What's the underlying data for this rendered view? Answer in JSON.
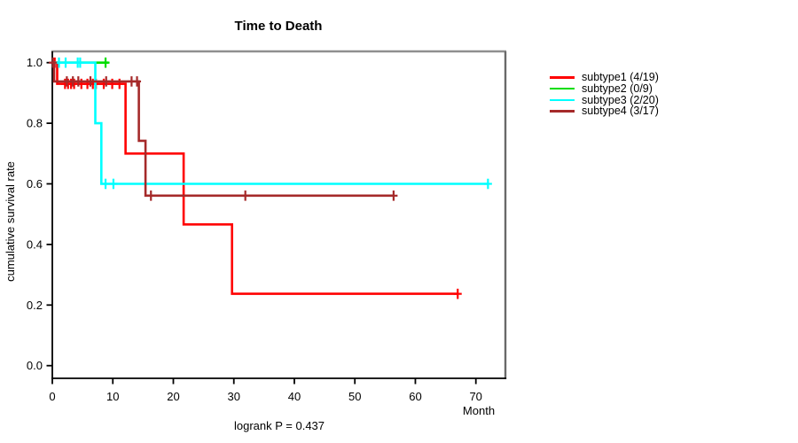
{
  "chart_data": {
    "type": "line",
    "subtype": "kaplan-meier-step",
    "title": "Time to Death",
    "xlabel": "Month",
    "ylabel": "cumulative survival rate",
    "annotation": "logrank P = 0.437",
    "xlim": [
      0,
      74.9
    ],
    "ylim": [
      0,
      1.04
    ],
    "x_ticks": [
      "0",
      "10",
      "20",
      "30",
      "40",
      "50",
      "60",
      "70"
    ],
    "y_ticks": [
      "0.0",
      "0.2",
      "0.4",
      "0.6",
      "0.8",
      "1.0"
    ],
    "grid": false,
    "legend_position": "right-outside",
    "axis_color": "#000000",
    "box_top_color": "#8f8f8f",
    "box_right_color": "#6a6a6a",
    "series": [
      {
        "name": "subtype1 (4/19)",
        "color": "#FF0000",
        "steps": [
          [
            0,
            1.0
          ],
          [
            0.8,
            1.0
          ],
          [
            0.8,
            0.93
          ],
          [
            12.1,
            0.93
          ],
          [
            12.1,
            0.7
          ],
          [
            21.7,
            0.7
          ],
          [
            21.7,
            0.466
          ],
          [
            29.7,
            0.466
          ],
          [
            29.7,
            0.237
          ],
          [
            67,
            0.237
          ]
        ],
        "censors": [
          [
            0.4,
            1.0
          ],
          [
            2.1,
            0.93
          ],
          [
            2.6,
            0.93
          ],
          [
            3.1,
            0.93
          ],
          [
            3.6,
            0.93
          ],
          [
            4.8,
            0.93
          ],
          [
            5.8,
            0.93
          ],
          [
            6.7,
            0.93
          ],
          [
            7.2,
            0.93
          ],
          [
            8.5,
            0.93
          ],
          [
            9.9,
            0.93
          ],
          [
            11.1,
            0.93
          ],
          [
            67,
            0.237
          ]
        ]
      },
      {
        "name": "subtype2 (0/9)",
        "color": "#00DD00",
        "steps": [
          [
            0,
            1.0
          ],
          [
            9.3,
            1.0
          ]
        ],
        "censors": [
          [
            8.8,
            1.0
          ]
        ]
      },
      {
        "name": "subtype3 (2/20)",
        "color": "#00FFFF",
        "steps": [
          [
            0,
            1.0
          ],
          [
            7.1,
            1.0
          ],
          [
            7.1,
            0.8
          ],
          [
            8.1,
            0.8
          ],
          [
            8.1,
            0.6
          ],
          [
            72,
            0.6
          ]
        ],
        "censors": [
          [
            1.1,
            1.0
          ],
          [
            2.2,
            1.0
          ],
          [
            4.2,
            1.0
          ],
          [
            4.6,
            1.0
          ],
          [
            8.8,
            0.6
          ],
          [
            10.1,
            0.6
          ],
          [
            72,
            0.6
          ]
        ]
      },
      {
        "name": "subtype4 (3/17)",
        "color": "#A52A2A",
        "steps": [
          [
            0,
            1.0
          ],
          [
            0.3,
            1.0
          ],
          [
            0.3,
            0.938
          ],
          [
            14.3,
            0.938
          ],
          [
            14.3,
            0.742
          ],
          [
            15.4,
            0.742
          ],
          [
            15.4,
            0.561
          ],
          [
            56.4,
            0.561
          ]
        ],
        "censors": [
          [
            0.1,
            1.0
          ],
          [
            2.4,
            0.938
          ],
          [
            3.4,
            0.938
          ],
          [
            4.3,
            0.938
          ],
          [
            6.3,
            0.938
          ],
          [
            8.9,
            0.938
          ],
          [
            13.1,
            0.938
          ],
          [
            14.0,
            0.938
          ],
          [
            16.3,
            0.561
          ],
          [
            31.9,
            0.561
          ],
          [
            56.4,
            0.561
          ]
        ]
      }
    ]
  }
}
